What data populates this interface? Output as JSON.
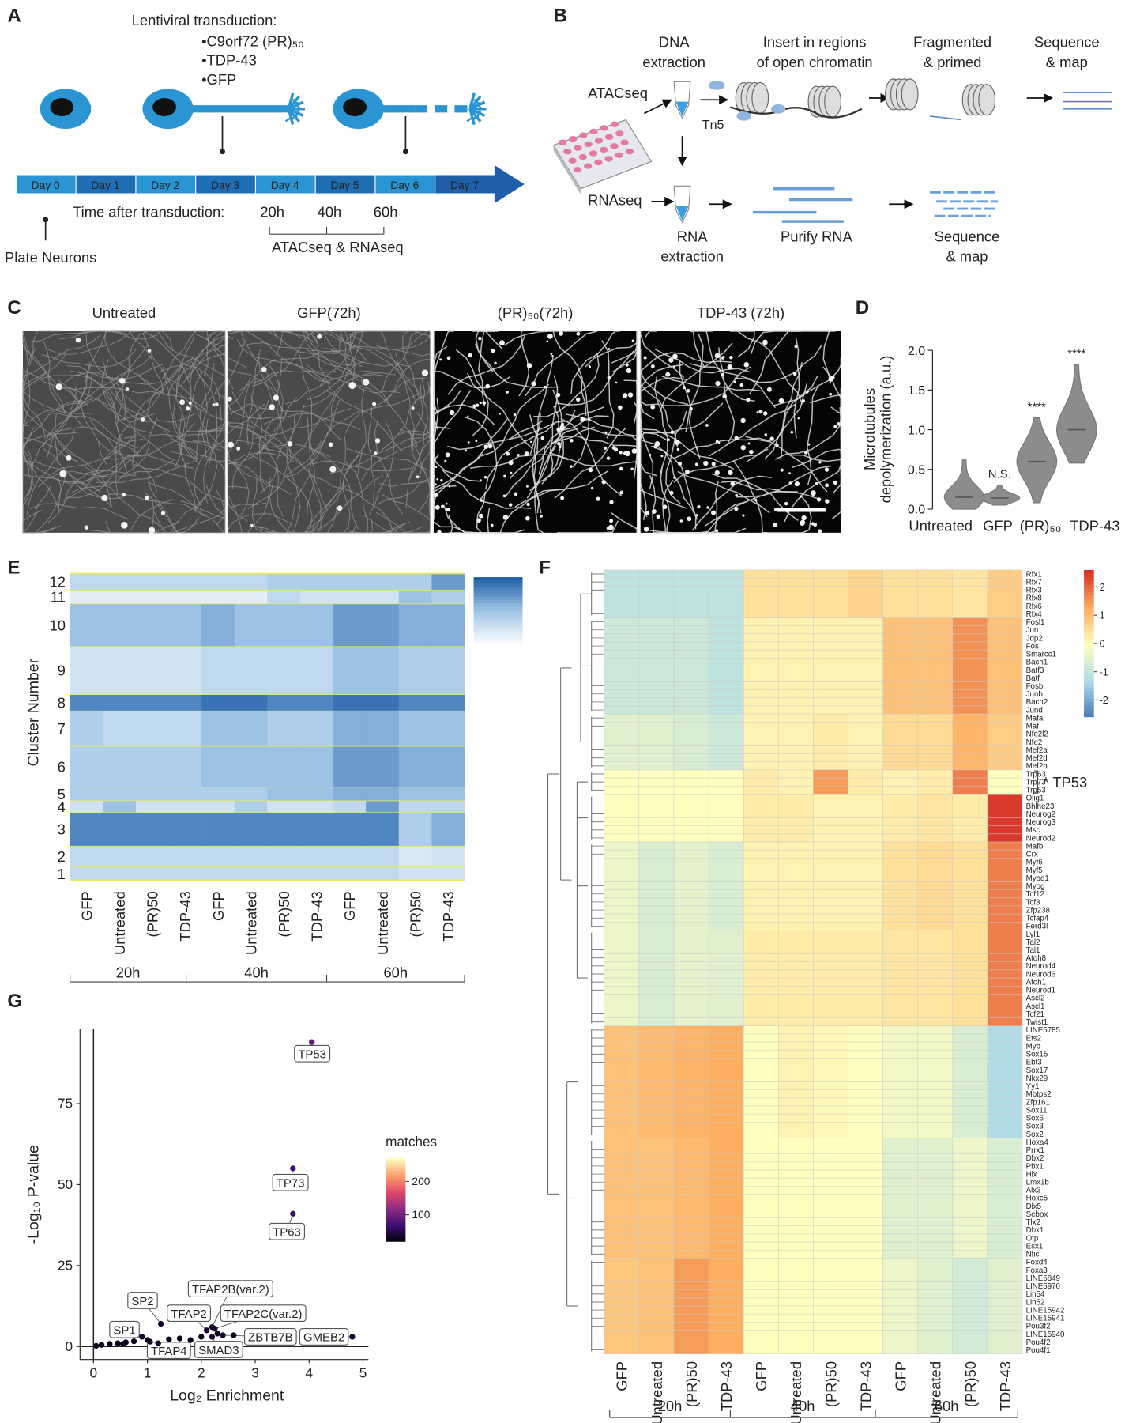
{
  "panel_labels": [
    "A",
    "B",
    "C",
    "D",
    "E",
    "F",
    "G"
  ],
  "panel_a": {
    "title": "Lentiviral transduction:",
    "constructs": [
      "•C9orf72 (PR)₅₀",
      "•TDP-43",
      "•GFP"
    ],
    "days": [
      "Day 0",
      "Day 1",
      "Day 2",
      "Day 3",
      "Day 4",
      "Day 5",
      "Day 6",
      "Day 7"
    ],
    "time_label": "Time after transduction:",
    "timepoints": [
      "20h",
      "40h",
      "60h"
    ],
    "assays": "ATACseq & RNAseq",
    "plate": "Plate Neurons"
  },
  "panel_b": {
    "atac": "ATACseq",
    "rna": "RNAseq",
    "tn5": "Tn5",
    "steps_top": [
      [
        "DNA",
        "extraction"
      ],
      [
        "Insert in regions",
        "of open chromatin"
      ],
      [
        "Fragmented",
        "& primed"
      ],
      [
        "Sequence",
        "& map"
      ]
    ],
    "steps_bottom": [
      [
        "RNA",
        "extraction"
      ],
      [
        "Purify RNA"
      ],
      [
        "Sequence",
        "& map"
      ]
    ]
  },
  "panel_c": {
    "conditions": [
      "Untreated",
      "GFP(72h)",
      "(PR)₅₀(72h)",
      "TDP-43 (72h)"
    ]
  },
  "chart_data": [
    {
      "type": "violin",
      "y_label": [
        "Microtubules",
        "depolymerization (a.u.)"
      ],
      "categories": [
        "Untreated",
        "GFP",
        "(PR)₅₀",
        "TDP-43"
      ],
      "values": [
        0.15,
        0.14,
        0.6,
        1.0
      ],
      "min": [
        0.0,
        0.05,
        0.08,
        0.58
      ],
      "max": [
        0.62,
        0.3,
        1.15,
        1.82
      ],
      "significance": [
        null,
        "N.S.",
        "****",
        "****"
      ],
      "color": "#8c8c8c",
      "ylim": [
        0,
        2
      ],
      "yticks": [
        {
          "value": 0,
          "label": "0.0"
        },
        {
          "value": 0.5,
          "label": "0.5"
        },
        {
          "value": 1,
          "label": "1.0"
        },
        {
          "value": 1.5,
          "label": "1.5"
        },
        {
          "value": 2,
          "label": "2.0"
        }
      ]
    },
    {
      "type": "heatmap",
      "y_label": "Cluster Number",
      "rows": [
        "1",
        "2",
        "3",
        "4",
        "5",
        "6",
        "7",
        "8",
        "9",
        "10",
        "11",
        "12"
      ],
      "columns": [
        "GFP",
        "Untreated",
        "(PR)50",
        "TDP-43",
        "GFP",
        "Untreated",
        "(PR)50",
        "TDP-43",
        "GFP",
        "Untreated",
        "(PR)50",
        "TDP-43"
      ],
      "groups": [
        "20h",
        "40h",
        "60h"
      ],
      "values": [
        [
          0.3,
          0.3,
          0.3,
          0.3,
          0.3,
          0.3,
          0.3,
          0.3,
          0.3,
          0.3,
          0.2,
          0.2
        ],
        [
          0.3,
          0.3,
          0.3,
          0.3,
          0.3,
          0.3,
          0.3,
          0.3,
          0.3,
          0.3,
          0.15,
          0.2
        ],
        [
          0.8,
          0.8,
          0.8,
          0.8,
          0.8,
          0.8,
          0.8,
          0.8,
          0.8,
          0.8,
          0.4,
          0.6
        ],
        [
          0.2,
          0.5,
          0.2,
          0.2,
          0.2,
          0.4,
          0.2,
          0.2,
          0.3,
          0.7,
          0.3,
          0.3
        ],
        [
          0.4,
          0.4,
          0.4,
          0.4,
          0.4,
          0.4,
          0.5,
          0.5,
          0.6,
          0.6,
          0.5,
          0.5
        ],
        [
          0.4,
          0.4,
          0.4,
          0.4,
          0.5,
          0.5,
          0.5,
          0.5,
          0.7,
          0.7,
          0.6,
          0.6
        ],
        [
          0.4,
          0.3,
          0.3,
          0.3,
          0.5,
          0.5,
          0.4,
          0.4,
          0.6,
          0.6,
          0.5,
          0.5
        ],
        [
          0.8,
          0.8,
          0.8,
          0.8,
          0.9,
          0.9,
          0.8,
          0.8,
          0.9,
          0.9,
          0.8,
          0.8
        ],
        [
          0.2,
          0.2,
          0.2,
          0.2,
          0.3,
          0.3,
          0.3,
          0.3,
          0.5,
          0.5,
          0.4,
          0.4
        ],
        [
          0.5,
          0.5,
          0.5,
          0.5,
          0.6,
          0.5,
          0.5,
          0.5,
          0.7,
          0.7,
          0.6,
          0.6
        ],
        [
          0.1,
          0.1,
          0.1,
          0.1,
          0.1,
          0.1,
          0.3,
          0.2,
          0.2,
          0.2,
          0.5,
          0.4
        ],
        [
          0.3,
          0.3,
          0.3,
          0.3,
          0.3,
          0.3,
          0.4,
          0.4,
          0.4,
          0.4,
          0.4,
          0.7
        ]
      ],
      "clim": [
        0,
        1
      ],
      "colors": [
        "#f4f8fc",
        "#9cc3e4",
        "#1f5fa8"
      ],
      "separator_color": "#e8e85a"
    },
    {
      "type": "heatmap",
      "columns": [
        "GFP",
        "Untreated",
        "(PR)50",
        "TDP-43",
        "GFP",
        "Untreated",
        "(PR)50",
        "TDP-43",
        "GFP",
        "Untreated",
        "(PR)50",
        "TDP-43"
      ],
      "groups": [
        "20h",
        "40h",
        "60h"
      ],
      "annotation": "* TP53",
      "row_blocks": [
        {
          "rows": [
            "Rfx1",
            "Rfx7",
            "Rfx3",
            "Rfx8",
            "Rfx6",
            "Rfx4"
          ],
          "values": [
            -1,
            -1,
            -1,
            -1,
            0.5,
            0.5,
            0.5,
            0.7,
            0.5,
            0.5,
            0.4,
            0.8
          ]
        },
        {
          "rows": [
            "Fosl1",
            "Jun",
            "Jdp2",
            "Fos",
            "Smarcc1",
            "Bach1",
            "Batf3",
            "Batf",
            "Fosb",
            "Junb",
            "Bach2",
            "Jund"
          ],
          "values": [
            -0.8,
            -0.8,
            -0.8,
            -1,
            0.2,
            0.2,
            0.2,
            0.2,
            1,
            1,
            1.6,
            1
          ]
        },
        {
          "rows": [
            "Mafa",
            "Maf",
            "Nfe2l2",
            "Nfe2",
            "Mef2a",
            "Mef2d",
            "Mef2b"
          ],
          "values": [
            -0.5,
            -0.5,
            -0.6,
            -0.8,
            0.2,
            0.2,
            0.3,
            0.2,
            0.6,
            0.6,
            1.2,
            0.8
          ]
        },
        {
          "rows": [
            "Trp63",
            "Trp73",
            "Trp53"
          ],
          "values": [
            0,
            0,
            0,
            0,
            0.3,
            0.2,
            1.5,
            0.3,
            0.2,
            0.3,
            1.8,
            0
          ]
        },
        {
          "rows": [
            "Olig1",
            "Bhlhe23",
            "Neurog2",
            "Neurog3",
            "Msc",
            "Neurod2"
          ],
          "values": [
            0,
            0,
            0,
            0,
            0.3,
            0.3,
            0.2,
            0.2,
            0.3,
            0.4,
            0.3,
            2.5
          ]
        },
        {
          "rows": [
            "Mafb",
            "Crx",
            "Myf6",
            "Myf5",
            "Myod1",
            "Myog",
            "Tcf12",
            "Tcf3",
            "Zfp238",
            "Tcfap4",
            "Ferd3l"
          ],
          "values": [
            -0.3,
            -0.6,
            -0.4,
            -0.6,
            0.2,
            0.2,
            0.2,
            0.2,
            0.5,
            0.6,
            0.5,
            1.8
          ]
        },
        {
          "rows": [
            "Lyl1",
            "Tal2",
            "Tal1",
            "Atoh8",
            "Neurod4",
            "Neurod6",
            "Atoh1",
            "Neurod1",
            "Ascl2",
            "Ascl1",
            "Tcf21",
            "Twist1"
          ],
          "values": [
            -0.3,
            -0.6,
            -0.4,
            -0.5,
            0.3,
            0.3,
            0.3,
            0.3,
            0.4,
            0.4,
            0.5,
            1.8
          ]
        },
        {
          "rows": [
            "LINE5785",
            "Ets2",
            "Myb",
            "Sox15",
            "Ebf3",
            "Sox17",
            "Nkx29",
            "Yy1",
            "Mbtps2",
            "Zfp161",
            "Sox11",
            "Sox6",
            "Sox3",
            "Sox2"
          ],
          "values": [
            1,
            1.1,
            1.2,
            1.3,
            0,
            0.2,
            0.1,
            0,
            -0.2,
            -0.2,
            -0.6,
            -1.2
          ]
        },
        {
          "rows": [
            "Hoxa4",
            "Prrx1",
            "Dbx2",
            "Pbx1",
            "Hlx",
            "Lmx1b",
            "Alx3",
            "Hoxc5",
            "Dlx5",
            "Sebox",
            "Tlx2",
            "Dbx1",
            "Otp",
            "Esx1",
            "Nfic"
          ],
          "values": [
            1,
            1,
            1.1,
            1.3,
            0,
            0,
            0,
            0,
            -0.5,
            -0.5,
            -0.3,
            -0.6
          ]
        },
        {
          "rows": [
            "Foxd4",
            "Foxa3",
            "LINE5849",
            "LINE5970",
            "Lin54",
            "Lin52",
            "LINE15942",
            "LINE15941",
            "Pou3f2",
            "LINE15940",
            "Pou4f2",
            "Pou4f1"
          ],
          "values": [
            0.9,
            1,
            1.5,
            1.3,
            0,
            0,
            0,
            0,
            -0.3,
            -0.5,
            -0.7,
            -0.5
          ]
        }
      ],
      "clim": [
        -2.6,
        2.6
      ],
      "cticks": [
        2,
        1,
        0,
        -1,
        -2
      ],
      "colors": [
        "#4575b4",
        "#abd9e9",
        "#ffffbf",
        "#fdae61",
        "#d73027"
      ]
    },
    {
      "type": "scatter",
      "x_label": "Log₂ Enrichment",
      "y_label": "-Log₁₀ P-value",
      "x": [
        4.05,
        3.7,
        3.7,
        1.25,
        2.1,
        2.2,
        2.25,
        0.9,
        1.2,
        2.2,
        2.4,
        4.8,
        0.05,
        0.15,
        0.3,
        0.45,
        0.6,
        0.75,
        1.0,
        1.4,
        1.6,
        1.8,
        2.0,
        2.3,
        2.6,
        1.05,
        0.55
      ],
      "y": [
        94,
        55,
        41,
        7,
        5,
        6,
        5.5,
        3,
        1,
        3,
        3.5,
        3,
        0.2,
        0.5,
        0.8,
        1,
        1.3,
        1.6,
        2,
        2.2,
        2.5,
        2,
        3,
        4,
        3.5,
        1.5,
        0.8
      ],
      "matches": [
        95,
        70,
        70,
        40,
        40,
        40,
        40,
        40,
        40,
        40,
        40,
        40,
        30,
        30,
        30,
        30,
        30,
        30,
        30,
        30,
        30,
        30,
        30,
        30,
        30,
        30,
        30
      ],
      "labels": [
        "TP53",
        "TP73",
        "TP63",
        "SP2",
        "TFAP2",
        "TFAP2B(var.2)",
        "TFAP2C(var.2)",
        "SP1",
        "TFAP4",
        "SMAD3",
        "ZBTB7B",
        "GMEB2",
        null,
        null,
        null,
        null,
        null,
        null,
        null,
        null,
        null,
        null,
        null,
        null,
        null,
        null,
        null
      ],
      "xlim": [
        -0.25,
        5.1
      ],
      "ylim": [
        -4,
        98
      ],
      "xticks": [
        0,
        1,
        2,
        3,
        4,
        5
      ],
      "yticks": [
        0,
        25,
        50,
        75
      ],
      "colorbar_title": "matches",
      "clim": [
        20,
        270
      ],
      "cticks": [
        100,
        200
      ],
      "colors": [
        "#000004",
        "#3b0f70",
        "#8c2981",
        "#de4968",
        "#fe9f6d",
        "#fcfdbf"
      ]
    }
  ]
}
